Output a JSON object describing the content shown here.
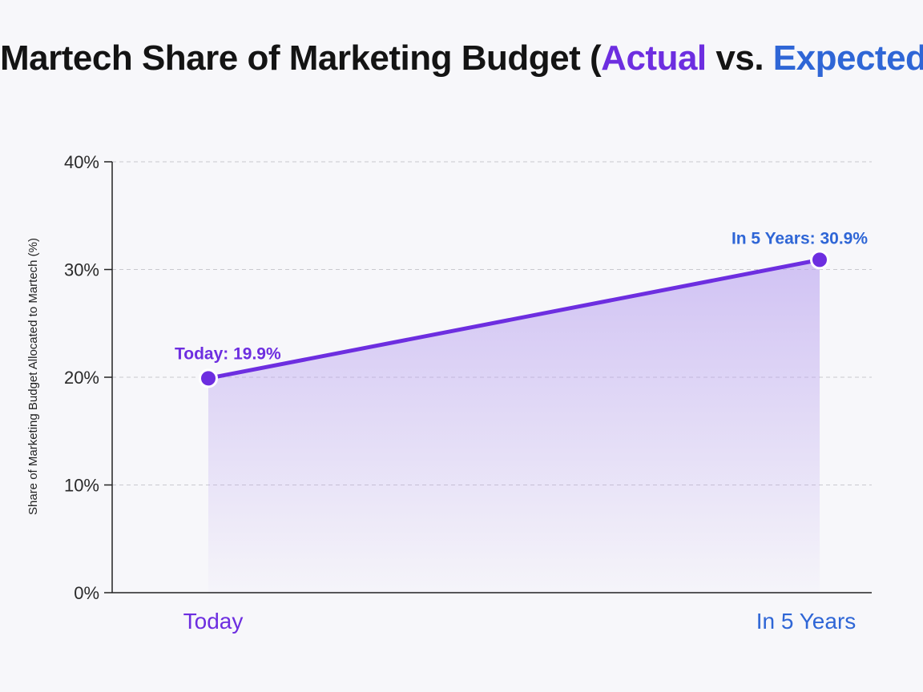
{
  "chart_data": {
    "type": "area",
    "title": {
      "prefix": "Martech Share of Marketing Budget (",
      "actual_word": "Actual",
      "middle": " vs. ",
      "expected_word": "Expected",
      "suffix": ")"
    },
    "ylabel": "Share of Marketing Budget Allocated to Martech (%)",
    "xlabel": "",
    "categories": [
      "Today",
      "In 5 Years"
    ],
    "values": [
      19.9,
      30.9
    ],
    "data_labels": [
      "Today: 19.9%",
      "In 5 Years: 30.9%"
    ],
    "ylim": [
      0,
      40
    ],
    "yticks": [
      0,
      10,
      20,
      30,
      40
    ],
    "ytick_labels": [
      "0%",
      "10%",
      "20%",
      "30%",
      "40%"
    ],
    "grid": true,
    "colors": {
      "actual": "#6d2ee0",
      "expected": "#2f66d6",
      "area": "#b9a2ef",
      "grid": "#c9c9cf",
      "axis": "#222222"
    }
  }
}
